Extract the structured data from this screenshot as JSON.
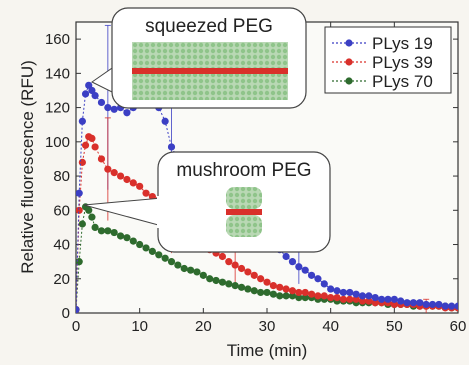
{
  "chart_data": {
    "type": "scatter",
    "xlabel": "Time (min)",
    "ylabel": "Relative fluorescence (RFU)",
    "xlim": [
      0,
      60
    ],
    "ylim": [
      0,
      170
    ],
    "xticks": [
      0,
      10,
      20,
      30,
      40,
      50,
      60
    ],
    "yticks": [
      0,
      20,
      40,
      60,
      80,
      100,
      120,
      140,
      160
    ],
    "legend_position": "top-right",
    "annotations": [
      {
        "label": "squeezed PEG"
      },
      {
        "label": "mushroom PEG"
      }
    ],
    "series": [
      {
        "name": "PLys 19",
        "color": "#3b3fc4",
        "points": [
          [
            0,
            2
          ],
          [
            0.5,
            70
          ],
          [
            1,
            112
          ],
          [
            1.5,
            128
          ],
          [
            2,
            133
          ],
          [
            2.5,
            130
          ],
          [
            3,
            127
          ],
          [
            4,
            123
          ],
          [
            5,
            120
          ],
          [
            6,
            119
          ],
          [
            7,
            120
          ],
          [
            8,
            117
          ],
          [
            9,
            120
          ],
          [
            10,
            123
          ],
          [
            11,
            126
          ],
          [
            12,
            125
          ],
          [
            13,
            120
          ],
          [
            14,
            112
          ],
          [
            15,
            97
          ],
          [
            16,
            90
          ],
          [
            17,
            85
          ],
          [
            18,
            82
          ],
          [
            19,
            77
          ],
          [
            20,
            75
          ],
          [
            21,
            72
          ],
          [
            22,
            70
          ],
          [
            23,
            67
          ],
          [
            24,
            64
          ],
          [
            25,
            60
          ],
          [
            26,
            54
          ],
          [
            27,
            48
          ],
          [
            28,
            45
          ],
          [
            29,
            44
          ],
          [
            30,
            42
          ],
          [
            31,
            40
          ],
          [
            32,
            37
          ],
          [
            33,
            33
          ],
          [
            34,
            30
          ],
          [
            35,
            27
          ],
          [
            36,
            25
          ],
          [
            37,
            22
          ],
          [
            38,
            20
          ],
          [
            39,
            17
          ],
          [
            40,
            14
          ],
          [
            41,
            13
          ],
          [
            42,
            12
          ],
          [
            43,
            12
          ],
          [
            44,
            11
          ],
          [
            45,
            10
          ],
          [
            46,
            10
          ],
          [
            47,
            9
          ],
          [
            48,
            8
          ],
          [
            49,
            8
          ],
          [
            50,
            8
          ],
          [
            51,
            7
          ],
          [
            52,
            6
          ],
          [
            53,
            6
          ],
          [
            54,
            6
          ],
          [
            55,
            5
          ],
          [
            56,
            5
          ],
          [
            57,
            5
          ],
          [
            58,
            4
          ],
          [
            59,
            4
          ],
          [
            60,
            4
          ]
        ]
      },
      {
        "name": "PLys 39",
        "color": "#d9302b",
        "points": [
          [
            0,
            2
          ],
          [
            0.5,
            60
          ],
          [
            1,
            88
          ],
          [
            1.5,
            98
          ],
          [
            2,
            103
          ],
          [
            2.5,
            102
          ],
          [
            3,
            97
          ],
          [
            4,
            90
          ],
          [
            5,
            84
          ],
          [
            6,
            82
          ],
          [
            7,
            80
          ],
          [
            8,
            78
          ],
          [
            9,
            76
          ],
          [
            10,
            74
          ],
          [
            11,
            70
          ],
          [
            12,
            68
          ],
          [
            13,
            66
          ],
          [
            14,
            64
          ],
          [
            15,
            60
          ],
          [
            16,
            56
          ],
          [
            17,
            52
          ],
          [
            18,
            48
          ],
          [
            19,
            44
          ],
          [
            20,
            40
          ],
          [
            21,
            37
          ],
          [
            22,
            35
          ],
          [
            23,
            33
          ],
          [
            24,
            30
          ],
          [
            25,
            28
          ],
          [
            26,
            26
          ],
          [
            27,
            24
          ],
          [
            28,
            22
          ],
          [
            29,
            20
          ],
          [
            30,
            18
          ],
          [
            31,
            16
          ],
          [
            32,
            15
          ],
          [
            33,
            14
          ],
          [
            34,
            13
          ],
          [
            35,
            12
          ],
          [
            36,
            12
          ],
          [
            37,
            11
          ],
          [
            38,
            10
          ],
          [
            39,
            10
          ],
          [
            40,
            9
          ],
          [
            41,
            9
          ],
          [
            42,
            8
          ],
          [
            43,
            8
          ],
          [
            44,
            8
          ],
          [
            45,
            7
          ],
          [
            46,
            7
          ],
          [
            47,
            6
          ],
          [
            48,
            6
          ],
          [
            49,
            6
          ],
          [
            50,
            5
          ],
          [
            51,
            5
          ],
          [
            52,
            5
          ],
          [
            53,
            5
          ],
          [
            54,
            4
          ],
          [
            55,
            4
          ],
          [
            56,
            4
          ],
          [
            57,
            4
          ],
          [
            58,
            3
          ],
          [
            59,
            3
          ],
          [
            60,
            3
          ]
        ]
      },
      {
        "name": "PLys 70",
        "color": "#2e6b2e",
        "points": [
          [
            0,
            2
          ],
          [
            0.5,
            30
          ],
          [
            1,
            52
          ],
          [
            1.5,
            62
          ],
          [
            2,
            60
          ],
          [
            2.5,
            56
          ],
          [
            3,
            50
          ],
          [
            4,
            48
          ],
          [
            5,
            48
          ],
          [
            6,
            47
          ],
          [
            7,
            45
          ],
          [
            8,
            44
          ],
          [
            9,
            42
          ],
          [
            10,
            40
          ],
          [
            11,
            38
          ],
          [
            12,
            36
          ],
          [
            13,
            34
          ],
          [
            14,
            32
          ],
          [
            15,
            30
          ],
          [
            16,
            28
          ],
          [
            17,
            26
          ],
          [
            18,
            25
          ],
          [
            19,
            24
          ],
          [
            20,
            22
          ],
          [
            21,
            20
          ],
          [
            22,
            19
          ],
          [
            23,
            18
          ],
          [
            24,
            17
          ],
          [
            25,
            16
          ],
          [
            26,
            15
          ],
          [
            27,
            14
          ],
          [
            28,
            13
          ],
          [
            29,
            12
          ],
          [
            30,
            12
          ],
          [
            31,
            11
          ],
          [
            32,
            10
          ],
          [
            33,
            10
          ],
          [
            34,
            10
          ],
          [
            35,
            9
          ],
          [
            36,
            9
          ],
          [
            37,
            9
          ],
          [
            38,
            8
          ],
          [
            39,
            8
          ],
          [
            40,
            8
          ],
          [
            41,
            7
          ],
          [
            42,
            7
          ],
          [
            43,
            7
          ],
          [
            44,
            6
          ],
          [
            45,
            6
          ],
          [
            46,
            6
          ],
          [
            47,
            6
          ],
          [
            48,
            6
          ],
          [
            49,
            5
          ],
          [
            50,
            5
          ],
          [
            51,
            5
          ],
          [
            52,
            5
          ],
          [
            53,
            4
          ],
          [
            54,
            4
          ],
          [
            55,
            4
          ],
          [
            56,
            4
          ],
          [
            57,
            4
          ],
          [
            58,
            4
          ],
          [
            59,
            3
          ],
          [
            60,
            3
          ]
        ]
      }
    ],
    "error_bars": [
      {
        "series": "PLys 19",
        "x": 5,
        "y": 120,
        "err": 48
      },
      {
        "series": "PLys 19",
        "x": 15,
        "y": 97,
        "err": 25
      },
      {
        "series": "PLys 39",
        "x": 5,
        "y": 84,
        "err": 30
      },
      {
        "series": "PLys 39",
        "x": 15,
        "y": 60,
        "err": 25
      },
      {
        "series": "PLys 39",
        "x": 25,
        "y": 28,
        "err": 12
      },
      {
        "series": "PLys 19",
        "x": 35,
        "y": 27,
        "err": 10
      },
      {
        "series": "PLys 39",
        "x": 55,
        "y": 4,
        "err": 4
      }
    ]
  }
}
